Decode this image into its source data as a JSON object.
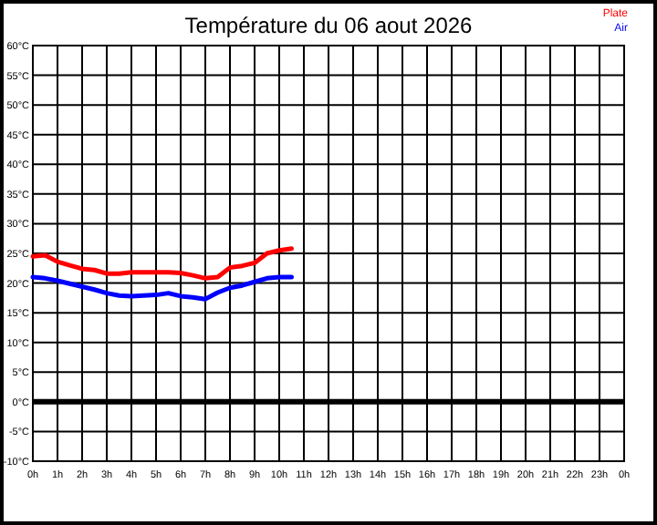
{
  "chart_data": {
    "type": "line",
    "title": "Température du 06 aout 2026",
    "x": [
      "2026-08-06T00:00",
      "2026-08-06T00:30",
      "2026-08-06T01:00",
      "2026-08-06T01:30",
      "2026-08-06T02:00",
      "2026-08-06T02:30",
      "2026-08-06T03:00",
      "2026-08-06T03:30",
      "2026-08-06T04:00",
      "2026-08-06T04:30",
      "2026-08-06T05:00",
      "2026-08-06T05:30",
      "2026-08-06T06:00",
      "2026-08-06T06:30",
      "2026-08-06T07:00",
      "2026-08-06T07:30",
      "2026-08-06T08:00",
      "2026-08-06T08:30",
      "2026-08-06T09:00",
      "2026-08-06T09:30",
      "2026-08-06T10:00",
      "2026-08-06T10:30"
    ],
    "series": [
      {
        "name": "Plate",
        "color": "#ff0000",
        "values": [
          24.5,
          24.7,
          23.6,
          23,
          22.4,
          22.2,
          21.6,
          21.6,
          21.8,
          21.8,
          21.8,
          21.8,
          21.7,
          21.3,
          20.8,
          21,
          22.6,
          22.9,
          23.4,
          25,
          25.5,
          25.8
        ]
      },
      {
        "name": "Air",
        "color": "#0000ff",
        "values": [
          21,
          20.8,
          20.4,
          19.9,
          19.4,
          18.9,
          18.3,
          17.9,
          17.8,
          17.9,
          18,
          18.3,
          17.8,
          17.6,
          17.3,
          18.4,
          19.2,
          19.6,
          20.2,
          20.8,
          21,
          21
        ]
      }
    ],
    "xlim": [
      "2026-08-06T00:00",
      "2026-08-07T00:00"
    ],
    "ylim": [
      -10,
      60
    ],
    "xticks": [
      {
        "value": "2026-08-06T00:00",
        "label": "0h"
      },
      {
        "value": "2026-08-06T01:00",
        "label": "1h"
      },
      {
        "value": "2026-08-06T02:00",
        "label": "2h"
      },
      {
        "value": "2026-08-06T03:00",
        "label": "3h"
      },
      {
        "value": "2026-08-06T04:00",
        "label": "4h"
      },
      {
        "value": "2026-08-06T05:00",
        "label": "5h"
      },
      {
        "value": "2026-08-06T06:00",
        "label": "6h"
      },
      {
        "value": "2026-08-06T07:00",
        "label": "7h"
      },
      {
        "value": "2026-08-06T08:00",
        "label": "8h"
      },
      {
        "value": "2026-08-06T09:00",
        "label": "9h"
      },
      {
        "value": "2026-08-06T10:00",
        "label": "10h"
      },
      {
        "value": "2026-08-06T11:00",
        "label": "11h"
      },
      {
        "value": "2026-08-06T12:00",
        "label": "12h"
      },
      {
        "value": "2026-08-06T13:00",
        "label": "13h"
      },
      {
        "value": "2026-08-06T14:00",
        "label": "14h"
      },
      {
        "value": "2026-08-06T15:00",
        "label": "15h"
      },
      {
        "value": "2026-08-06T16:00",
        "label": "16h"
      },
      {
        "value": "2026-08-06T17:00",
        "label": "17h"
      },
      {
        "value": "2026-08-06T18:00",
        "label": "18h"
      },
      {
        "value": "2026-08-06T19:00",
        "label": "19h"
      },
      {
        "value": "2026-08-06T20:00",
        "label": "20h"
      },
      {
        "value": "2026-08-06T21:00",
        "label": "21h"
      },
      {
        "value": "2026-08-06T22:00",
        "label": "22h"
      },
      {
        "value": "2026-08-06T23:00",
        "label": "23h"
      },
      {
        "value": "2026-08-07T00:00",
        "label": "0h"
      }
    ],
    "yticks": [
      {
        "value": -10,
        "label": "-10°C"
      },
      {
        "value": -5,
        "label": "-5°C"
      },
      {
        "value": 0,
        "label": "0°C"
      },
      {
        "value": 5,
        "label": "5°C"
      },
      {
        "value": 10,
        "label": "10°C"
      },
      {
        "value": 15,
        "label": "15°C"
      },
      {
        "value": 20,
        "label": "20°C"
      },
      {
        "value": 25,
        "label": "25°C"
      },
      {
        "value": 30,
        "label": "30°C"
      },
      {
        "value": 35,
        "label": "35°C"
      },
      {
        "value": 40,
        "label": "40°C"
      },
      {
        "value": 45,
        "label": "45°C"
      },
      {
        "value": 50,
        "label": "50°C"
      },
      {
        "value": 55,
        "label": "55°C"
      },
      {
        "value": 60,
        "label": "60°C"
      }
    ],
    "ref_lines": [
      {
        "axis": "y",
        "value": 0,
        "color": "#000000"
      }
    ],
    "grid": true,
    "legend": "top right",
    "line_style": "solid",
    "marker": "none"
  }
}
